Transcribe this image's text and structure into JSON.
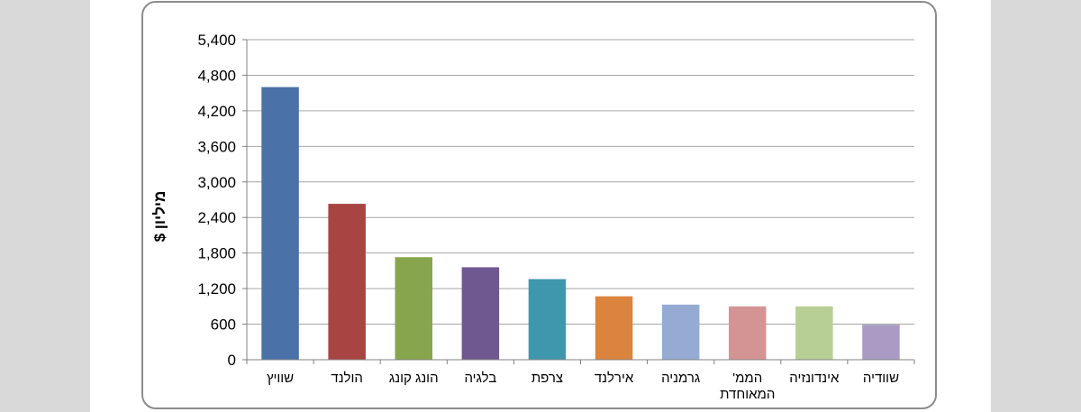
{
  "chart_data": {
    "type": "bar",
    "title": "",
    "xlabel": "",
    "ylabel": "מיליון $",
    "ylim": [
      0,
      5400
    ],
    "yticks": [
      0,
      600,
      1200,
      1800,
      2400,
      3000,
      3600,
      4200,
      4800,
      5400
    ],
    "ytick_labels": [
      "0",
      "600",
      "1,200",
      "1,800",
      "2,400",
      "3,000",
      "3,600",
      "4,200",
      "4,800",
      "5,400"
    ],
    "grid": true,
    "legend": "none",
    "categories": [
      [
        "שוויץ"
      ],
      [
        "הולנד"
      ],
      [
        "הונג קונג"
      ],
      [
        "בלגיה"
      ],
      [
        "צרפת"
      ],
      [
        "אירלנד"
      ],
      [
        "גרמניה"
      ],
      [
        "הממ'",
        "המאוחדת"
      ],
      [
        "אינדונזיה"
      ],
      [
        "שוודיה"
      ]
    ],
    "values": [
      4600,
      2630,
      1730,
      1560,
      1360,
      1070,
      930,
      900,
      900,
      590
    ],
    "colors": [
      "#4a72a8",
      "#a84442",
      "#87a54c",
      "#6f588f",
      "#3f97ae",
      "#db843d",
      "#95abd4",
      "#d49494",
      "#b7cf95",
      "#a99bc4"
    ],
    "gridline_color": "#a6a6a6",
    "axis_color": "#808080"
  }
}
